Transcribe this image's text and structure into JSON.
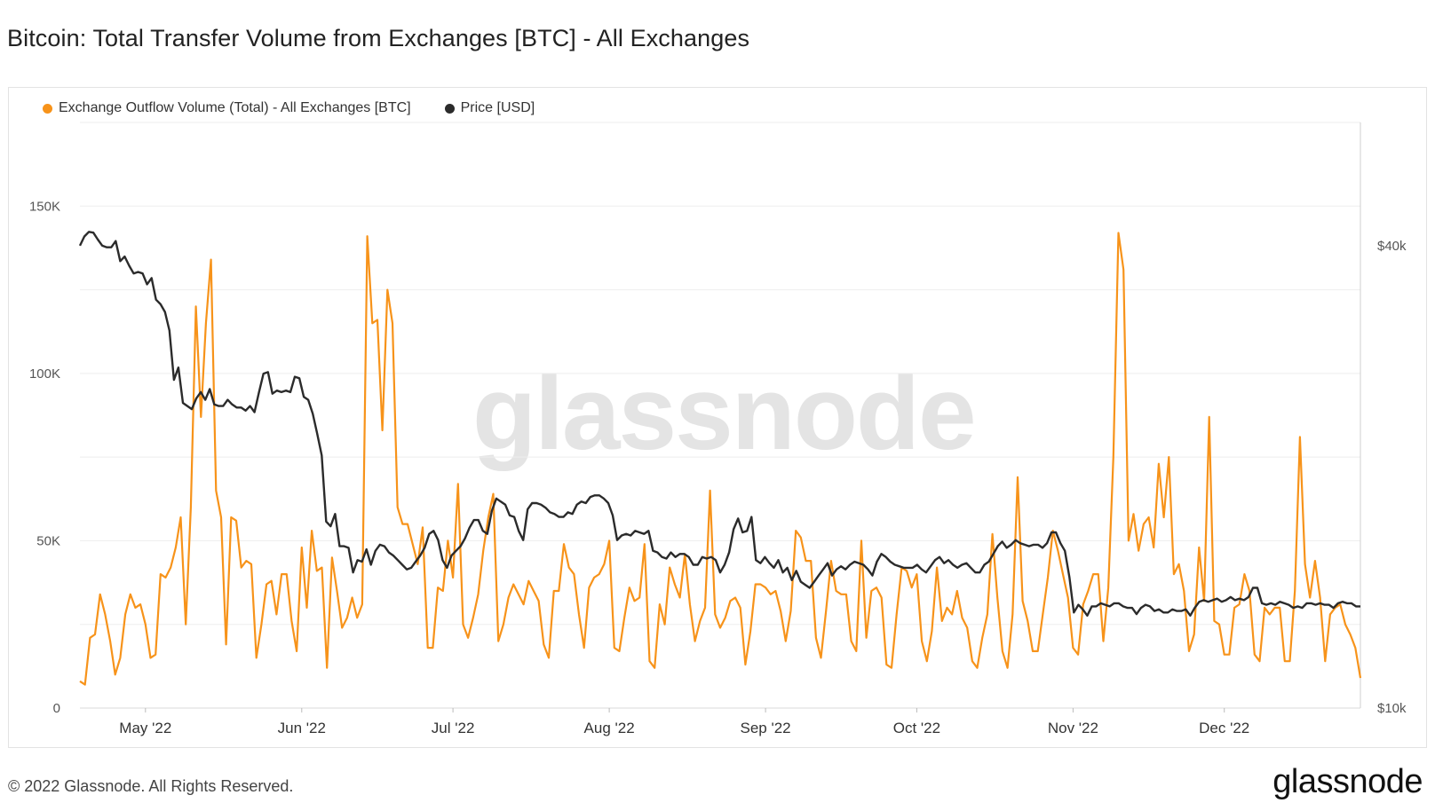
{
  "title": "Bitcoin: Total Transfer Volume from Exchanges [BTC] - All Exchanges",
  "footer": "© 2022 Glassnode. All Rights Reserved.",
  "brand": "glassnode",
  "watermark": "glassnode",
  "colors": {
    "outflow": "#f7931a",
    "price": "#2b2b2b",
    "grid": "#eeeeee"
  },
  "chart_data": {
    "type": "line",
    "title": "Bitcoin: Total Transfer Volume from Exchanges [BTC] - All Exchanges",
    "x_start": "2022-04-18",
    "x_end": "2022-12-28",
    "x_tick_labels": [
      "May '22",
      "Jun '22",
      "Jul '22",
      "Aug '22",
      "Sep '22",
      "Oct '22",
      "Nov '22",
      "Dec '22"
    ],
    "x_tick_dates": [
      "2022-05-01",
      "2022-06-01",
      "2022-07-01",
      "2022-08-01",
      "2022-09-01",
      "2022-10-01",
      "2022-11-01",
      "2022-12-01"
    ],
    "left_axis": {
      "ticks": [
        0,
        50000,
        100000,
        150000
      ],
      "tick_labels": [
        "0",
        "50K",
        "100K",
        "150K"
      ],
      "range": [
        0,
        175000
      ]
    },
    "right_axis": {
      "ticks": [
        10000,
        40000
      ],
      "tick_labels": [
        "$10k",
        "$40k"
      ],
      "scale": "linear",
      "range": [
        10000,
        48000
      ]
    },
    "grid": true,
    "legend_position": "top-left",
    "series": [
      {
        "name": "Exchange Outflow Volume (Total) - All Exchanges [BTC]",
        "axis": "left",
        "color": "#f7931a",
        "values": [
          8000,
          7000,
          21000,
          22000,
          34000,
          28000,
          20000,
          10000,
          15000,
          28000,
          34000,
          30000,
          31000,
          25000,
          15000,
          16000,
          40000,
          39000,
          42000,
          48000,
          57000,
          25000,
          60000,
          120000,
          87000,
          115000,
          134000,
          65000,
          57000,
          19000,
          57000,
          56000,
          42000,
          44000,
          43000,
          15000,
          25000,
          37000,
          38000,
          28000,
          40000,
          40000,
          26000,
          17000,
          48000,
          30000,
          53000,
          41000,
          42000,
          12000,
          45000,
          35000,
          24000,
          27000,
          33000,
          27000,
          31000,
          141000,
          115000,
          116000,
          83000,
          125000,
          115000,
          60000,
          55000,
          55000,
          49000,
          43000,
          54000,
          18000,
          18000,
          36000,
          35000,
          50000,
          39000,
          67000,
          25000,
          21000,
          27000,
          34000,
          47000,
          57000,
          64000,
          20000,
          25000,
          33000,
          37000,
          34000,
          31000,
          38000,
          35000,
          32000,
          19000,
          15000,
          35000,
          35000,
          49000,
          42000,
          40000,
          28000,
          18000,
          36000,
          39000,
          40000,
          43000,
          50000,
          18000,
          17000,
          27000,
          36000,
          32000,
          33000,
          49000,
          14000,
          12000,
          31000,
          25000,
          42000,
          37000,
          33000,
          46000,
          31000,
          20000,
          26000,
          30000,
          65000,
          28000,
          24000,
          27000,
          32000,
          33000,
          30000,
          13000,
          23000,
          37000,
          37000,
          36000,
          34000,
          35000,
          29000,
          20000,
          29000,
          53000,
          51000,
          44000,
          44000,
          21000,
          15000,
          29000,
          44000,
          35000,
          34000,
          34000,
          20000,
          17000,
          50000,
          21000,
          35000,
          36000,
          33000,
          13000,
          12000,
          28000,
          42000,
          41000,
          36000,
          40000,
          20000,
          14000,
          23000,
          42000,
          26000,
          30000,
          28000,
          35000,
          27000,
          24000,
          14000,
          12000,
          21000,
          28000,
          52000,
          33000,
          17000,
          12000,
          28000,
          69000,
          32000,
          26000,
          17000,
          17000,
          28000,
          39000,
          53000,
          47000,
          40000,
          33000,
          18000,
          16000,
          31000,
          35000,
          40000,
          40000,
          20000,
          36000,
          75000,
          142000,
          131000,
          50000,
          58000,
          47000,
          55000,
          57000,
          48000,
          73000,
          57000,
          75000,
          40000,
          43000,
          35000,
          17000,
          22000,
          48000,
          32000,
          87000,
          26000,
          25000,
          16000,
          16000,
          30000,
          31000,
          40000,
          35000,
          16000,
          14000,
          30000,
          28000,
          30000,
          30000,
          14000,
          14000,
          35000,
          81000,
          43000,
          33000,
          44000,
          33000,
          14000,
          28000,
          30000,
          31000,
          25000,
          22000,
          18000,
          9000
        ]
      },
      {
        "name": "Price [USD]",
        "axis": "right",
        "color": "#2b2b2b",
        "values": [
          40000,
          40600,
          40900,
          40850,
          40400,
          40000,
          39900,
          39900,
          40300,
          39000,
          39300,
          38700,
          38200,
          38300,
          38200,
          37500,
          37900,
          36500,
          36200,
          35700,
          34500,
          31300,
          32100,
          29800,
          29600,
          29400,
          30100,
          30500,
          30000,
          30700,
          29700,
          29600,
          29600,
          30000,
          29700,
          29500,
          29500,
          29300,
          29600,
          29200,
          30500,
          31700,
          31800,
          30400,
          30600,
          30500,
          30600,
          30500,
          31500,
          31400,
          30200,
          30000,
          29100,
          27800,
          26400,
          22100,
          21800,
          22600,
          20500,
          20500,
          20400,
          18800,
          19600,
          19500,
          20300,
          19300,
          20200,
          20600,
          20500,
          20100,
          19900,
          19600,
          19300,
          19000,
          19100,
          19500,
          19900,
          20400,
          21300,
          21500,
          20900,
          19600,
          19100,
          19900,
          20200,
          20500,
          21000,
          21700,
          22200,
          22200,
          21500,
          21300,
          22800,
          23600,
          23400,
          23200,
          22500,
          22400,
          21500,
          20900,
          22900,
          23300,
          23300,
          23200,
          23000,
          22700,
          22600,
          22400,
          22400,
          22700,
          22600,
          23200,
          23400,
          23300,
          23700,
          23800,
          23800,
          23600,
          23300,
          22500,
          20900,
          21200,
          21300,
          21200,
          21500,
          21400,
          21300,
          21500,
          20200,
          20100,
          19800,
          19700,
          20100,
          19800,
          20000,
          20000,
          19800,
          19300,
          19300,
          19800,
          19700,
          19800,
          19600,
          18800,
          19300,
          20100,
          21600,
          22300,
          21400,
          21500,
          22400,
          19600,
          19400,
          19800,
          19400,
          19100,
          19600,
          18800,
          19100,
          18300,
          18900,
          18200,
          18000,
          17800,
          18200,
          18600,
          19000,
          19400,
          18600,
          19000,
          19200,
          19000,
          19300,
          19500,
          19400,
          19300,
          19000,
          18600,
          19500,
          20000,
          19800,
          19500,
          19300,
          19200,
          19100,
          19100,
          19100,
          19300,
          19000,
          18800,
          19200,
          19600,
          19800,
          19400,
          19600,
          19300,
          19100,
          19300,
          19400,
          19100,
          18800,
          18800,
          19300,
          19500,
          20000,
          20500,
          20800,
          20400,
          20600,
          20900,
          20700,
          20600,
          20500,
          20600,
          20600,
          20400,
          20700,
          21400,
          21400,
          20700,
          20200,
          18500,
          16200,
          16700,
          16400,
          16000,
          16600,
          16600,
          16800,
          16700,
          16600,
          16800,
          16800,
          16600,
          16500,
          16500,
          16100,
          16500,
          16700,
          16600,
          16300,
          16400,
          16200,
          16200,
          16400,
          16300,
          16300,
          16400,
          16000,
          16500,
          16900,
          17000,
          16900,
          17000,
          17100,
          16900,
          17000,
          17200,
          17000,
          17100,
          17000,
          17200,
          17800,
          17800,
          16800,
          16700,
          16800,
          16700,
          16900,
          16800,
          16700,
          16500,
          16600,
          16500,
          16800,
          16800,
          16700,
          16800,
          16700,
          16700,
          16500,
          16800,
          16900,
          16800,
          16800,
          16600,
          16600
        ]
      }
    ],
    "legend": [
      "Exchange Outflow Volume (Total) - All Exchanges [BTC]",
      "Price [USD]"
    ]
  }
}
